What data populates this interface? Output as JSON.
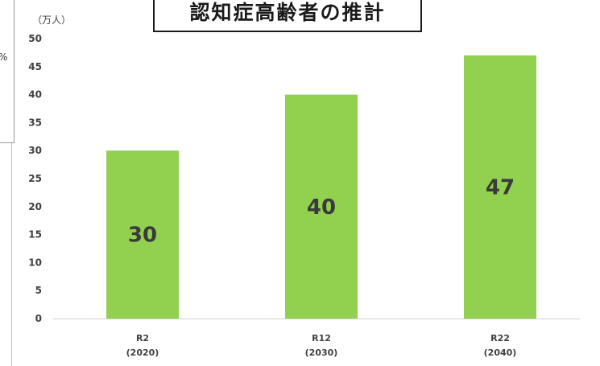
{
  "chart_data": {
    "type": "bar",
    "title": "認知症高齢者の推計",
    "unit": "（万人）",
    "categories": [
      {
        "line1": "R2",
        "line2": "(2020)"
      },
      {
        "line1": "R12",
        "line2": "(2030)"
      },
      {
        "line1": "R22",
        "line2": "(2040)"
      }
    ],
    "values": [
      30,
      40,
      47
    ],
    "data_labels": [
      "30",
      "40",
      "47"
    ],
    "yticks": [
      "0",
      "5",
      "10",
      "15",
      "20",
      "25",
      "30",
      "35",
      "40",
      "45",
      "50"
    ],
    "ylim": [
      0,
      50
    ],
    "grid": false,
    "legend": "none",
    "bar_color": "#92d050"
  },
  "fragment": {
    "mark": "%"
  }
}
